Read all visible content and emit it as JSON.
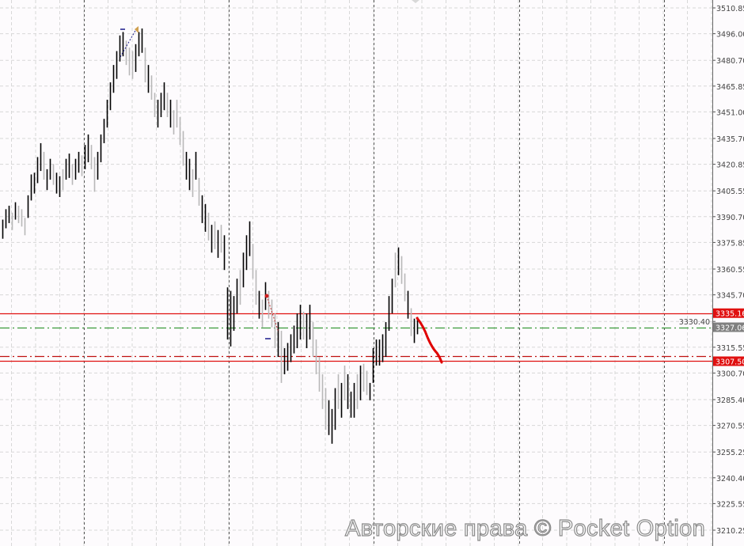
{
  "chart_data": {
    "type": "ohlc-bar",
    "ylim": [
      3203,
      3515
    ],
    "y_ticks": [
      "3510.85",
      "3496.00",
      "3480.70",
      "3465.85",
      "3451.00",
      "3435.70",
      "3420.85",
      "3405.55",
      "3390.70",
      "3375.85",
      "3360.55",
      "3345.70",
      "3330.40",
      "3315.55",
      "3300.70",
      "3285.40",
      "3270.55",
      "3255.25",
      "3240.40",
      "3225.55",
      "3210.25"
    ],
    "grid": true,
    "colors": {
      "up": "#000000",
      "down": "#b8b8b8",
      "level": "#e01010",
      "current": "#808080",
      "signal": "#3a9a3a",
      "grid": "#d8d8d8",
      "separator": "#555555"
    },
    "levels": [
      {
        "price": 3335.16,
        "label": "3335.16",
        "style": "solid",
        "color": "#e01010"
      },
      {
        "price": 3307.5,
        "label": "3307.50",
        "style": "solid",
        "color": "#e01010"
      },
      {
        "price": 3310.4,
        "style": "dashdot",
        "color": "#c01010"
      },
      {
        "price": 3327.06,
        "label": "3327.06",
        "style": "dashdot",
        "color": "#3a9a3a",
        "current": true
      }
    ],
    "bars": [
      [
        3389,
        3378,
        1
      ],
      [
        3395,
        3384,
        1
      ],
      [
        3397,
        3387,
        1
      ],
      [
        3393,
        3383,
        0
      ],
      [
        3399,
        3389,
        1
      ],
      [
        3397,
        3387,
        0
      ],
      [
        3395,
        3385,
        0
      ],
      [
        3390,
        3380,
        0
      ],
      [
        3403,
        3390,
        1
      ],
      [
        3415,
        3400,
        1
      ],
      [
        3416,
        3404,
        1
      ],
      [
        3425,
        3410,
        1
      ],
      [
        3433,
        3417,
        1
      ],
      [
        3428,
        3412,
        0
      ],
      [
        3418,
        3406,
        1
      ],
      [
        3424,
        3412,
        1
      ],
      [
        3421,
        3409,
        0
      ],
      [
        3416,
        3404,
        1
      ],
      [
        3414,
        3402,
        1
      ],
      [
        3418,
        3406,
        0
      ],
      [
        3424,
        3412,
        1
      ],
      [
        3427,
        3413,
        1
      ],
      [
        3421,
        3409,
        0
      ],
      [
        3424,
        3412,
        1
      ],
      [
        3428,
        3416,
        1
      ],
      [
        3426,
        3414,
        0
      ],
      [
        3432,
        3418,
        1
      ],
      [
        3438,
        3422,
        1
      ],
      [
        3432,
        3418,
        0
      ],
      [
        3425,
        3405,
        0
      ],
      [
        3428,
        3412,
        1
      ],
      [
        3438,
        3422,
        1
      ],
      [
        3447,
        3433,
        1
      ],
      [
        3458,
        3442,
        1
      ],
      [
        3468,
        3452,
        1
      ],
      [
        3478,
        3462,
        1
      ],
      [
        3486,
        3470,
        1
      ],
      [
        3495,
        3480,
        1
      ],
      [
        3497,
        3483,
        1
      ],
      [
        3492,
        3478,
        0
      ],
      [
        3488,
        3472,
        0
      ],
      [
        3486,
        3470,
        0
      ],
      [
        3490,
        3474,
        1
      ],
      [
        3497,
        3483,
        1
      ],
      [
        3499,
        3485,
        1
      ],
      [
        3488,
        3468,
        0
      ],
      [
        3478,
        3462,
        1
      ],
      [
        3472,
        3458,
        0
      ],
      [
        3462,
        3448,
        0
      ],
      [
        3458,
        3442,
        1
      ],
      [
        3462,
        3448,
        1
      ],
      [
        3468,
        3452,
        1
      ],
      [
        3462,
        3448,
        0
      ],
      [
        3458,
        3442,
        1
      ],
      [
        3452,
        3438,
        0
      ],
      [
        3458,
        3442,
        0
      ],
      [
        3448,
        3432,
        0
      ],
      [
        3440,
        3420,
        0
      ],
      [
        3428,
        3412,
        1
      ],
      [
        3424,
        3406,
        1
      ],
      [
        3418,
        3402,
        0
      ],
      [
        3428,
        3412,
        1
      ],
      [
        3413,
        3397,
        0
      ],
      [
        3403,
        3387,
        1
      ],
      [
        3398,
        3382,
        1
      ],
      [
        3393,
        3377,
        0
      ],
      [
        3386,
        3370,
        1
      ],
      [
        3388,
        3372,
        0
      ],
      [
        3383,
        3367,
        1
      ],
      [
        3386,
        3370,
        0
      ],
      [
        3380,
        3360,
        1
      ],
      [
        3350,
        3320,
        1
      ],
      [
        3348,
        3316,
        1
      ],
      [
        3345,
        3325,
        1
      ],
      [
        3355,
        3335,
        1
      ],
      [
        3360,
        3340,
        0
      ],
      [
        3370,
        3350,
        1
      ],
      [
        3380,
        3360,
        1
      ],
      [
        3388,
        3368,
        1
      ],
      [
        3375,
        3355,
        0
      ],
      [
        3360,
        3340,
        0
      ],
      [
        3348,
        3332,
        1
      ],
      [
        3343,
        3327,
        0
      ],
      [
        3353,
        3337,
        1
      ],
      [
        3348,
        3332,
        0
      ],
      [
        3343,
        3327,
        0
      ],
      [
        3335,
        3315,
        0
      ],
      [
        3330,
        3310,
        1
      ],
      [
        3325,
        3295,
        0
      ],
      [
        3315,
        3300,
        1
      ],
      [
        3318,
        3302,
        1
      ],
      [
        3323,
        3307,
        1
      ],
      [
        3328,
        3312,
        1
      ],
      [
        3335,
        3315,
        1
      ],
      [
        3340,
        3320,
        1
      ],
      [
        3336,
        3320,
        0
      ],
      [
        3335,
        3315,
        1
      ],
      [
        3340,
        3320,
        1
      ],
      [
        3330,
        3310,
        0
      ],
      [
        3320,
        3300,
        0
      ],
      [
        3310,
        3290,
        0
      ],
      [
        3300,
        3280,
        0
      ],
      [
        3292,
        3268,
        0
      ],
      [
        3285,
        3265,
        1
      ],
      [
        3280,
        3260,
        1
      ],
      [
        3292,
        3268,
        1
      ],
      [
        3300,
        3280,
        0
      ],
      [
        3295,
        3275,
        1
      ],
      [
        3305,
        3285,
        0
      ],
      [
        3300,
        3280,
        1
      ],
      [
        3290,
        3275,
        1
      ],
      [
        3295,
        3275,
        1
      ],
      [
        3300,
        3280,
        0
      ],
      [
        3305,
        3285,
        1
      ],
      [
        3306,
        3290,
        0
      ],
      [
        3302,
        3288,
        0
      ],
      [
        3295,
        3285,
        1
      ],
      [
        3315,
        3295,
        1
      ],
      [
        3320,
        3305,
        1
      ],
      [
        3320,
        3305,
        1
      ],
      [
        3323,
        3307,
        1
      ],
      [
        3330,
        3310,
        1
      ],
      [
        3345,
        3325,
        1
      ],
      [
        3355,
        3335,
        1
      ],
      [
        3370,
        3350,
        0
      ],
      [
        3373,
        3357,
        1
      ],
      [
        3368,
        3352,
        0
      ],
      [
        3358,
        3342,
        0
      ],
      [
        3348,
        3332,
        1
      ],
      [
        3338,
        3322,
        0
      ],
      [
        3332,
        3318,
        1
      ],
      [
        3333,
        3323,
        1
      ]
    ]
  },
  "watermark": "Авторские права © Pocket Option"
}
